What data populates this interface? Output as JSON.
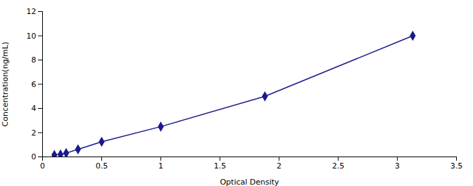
{
  "chart_data": {
    "type": "line",
    "x": [
      0.1,
      0.152,
      0.2,
      0.3,
      0.5,
      1.0,
      1.88,
      3.13
    ],
    "values": [
      0.156,
      0.2,
      0.313,
      0.625,
      1.25,
      2.5,
      5.0,
      10.0
    ],
    "color": "#1a1a8c",
    "marker": "diamond",
    "xlabel": "Optical Density",
    "ylabel": "Concentration(ng/mL)",
    "xlim": [
      0,
      3.5
    ],
    "ylim": [
      0,
      12
    ],
    "xticks": [
      0,
      0.5,
      1.0,
      1.5,
      2.0,
      2.5,
      3.0,
      3.5
    ],
    "yticks": [
      0,
      2,
      4,
      6,
      8,
      10,
      12
    ],
    "grid": false
  }
}
